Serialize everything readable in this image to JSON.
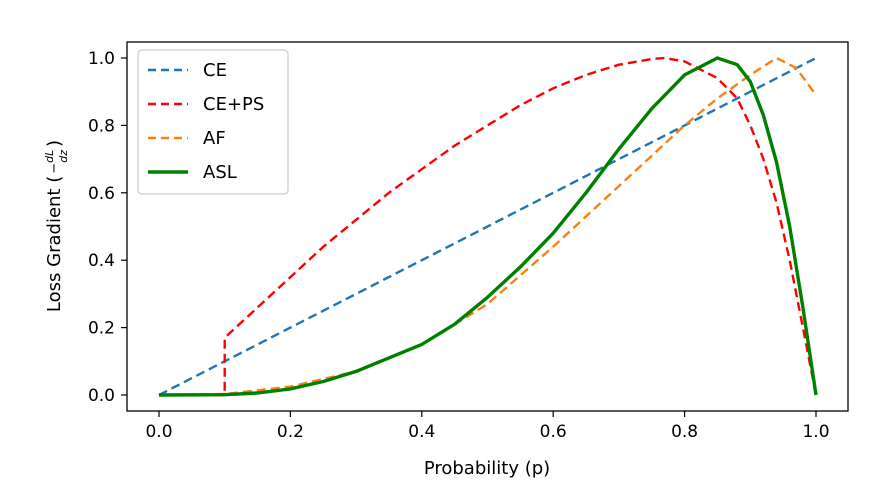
{
  "chart_data": {
    "type": "line",
    "title": "",
    "xlabel": "Probability (p)",
    "ylabel_prefix": "Loss Gradient (",
    "ylabel_frac_sign": "−",
    "ylabel_frac_num": "dL",
    "ylabel_frac_den": "dz",
    "ylabel_suffix": ")",
    "xlim": [
      0.0,
      1.0
    ],
    "ylim": [
      0.0,
      1.0
    ],
    "x_ticks": [
      "0.0",
      "0.2",
      "0.4",
      "0.6",
      "0.8",
      "1.0"
    ],
    "y_ticks": [
      "0.0",
      "0.2",
      "0.4",
      "0.6",
      "0.8",
      "1.0"
    ],
    "legend_position": "top-left",
    "grid": false,
    "series": [
      {
        "name": "CE",
        "color": "#1f77b4",
        "style": "dashed",
        "x": [
          0.0,
          1.0
        ],
        "y": [
          0.0,
          1.0
        ]
      },
      {
        "name": "CE+PS",
        "color": "#ff0000",
        "style": "dashed",
        "x": [
          0.0,
          0.1,
          0.1,
          0.15,
          0.2,
          0.25,
          0.3,
          0.35,
          0.4,
          0.45,
          0.5,
          0.55,
          0.6,
          0.65,
          0.7,
          0.75,
          0.77,
          0.8,
          0.85,
          0.88,
          0.9,
          0.92,
          0.94,
          0.96,
          0.98,
          1.0
        ],
        "y": [
          0.0,
          0.0,
          0.17,
          0.26,
          0.35,
          0.44,
          0.52,
          0.6,
          0.67,
          0.74,
          0.8,
          0.86,
          0.91,
          0.95,
          0.98,
          0.997,
          1.0,
          0.99,
          0.94,
          0.88,
          0.8,
          0.7,
          0.57,
          0.4,
          0.2,
          0.0
        ]
      },
      {
        "name": "AF",
        "color": "#ff7f0e",
        "style": "dashed",
        "x": [
          0.0,
          0.1,
          0.2,
          0.3,
          0.4,
          0.5,
          0.6,
          0.7,
          0.75,
          0.8,
          0.85,
          0.9,
          0.94,
          0.97,
          1.0
        ],
        "y": [
          0.0,
          0.003,
          0.025,
          0.07,
          0.15,
          0.27,
          0.44,
          0.62,
          0.71,
          0.8,
          0.88,
          0.95,
          1.0,
          0.97,
          0.89
        ]
      },
      {
        "name": "ASL",
        "color": "#008000",
        "style": "solid",
        "x": [
          0.0,
          0.1,
          0.15,
          0.2,
          0.25,
          0.3,
          0.35,
          0.4,
          0.45,
          0.5,
          0.55,
          0.6,
          0.65,
          0.7,
          0.75,
          0.8,
          0.85,
          0.88,
          0.9,
          0.92,
          0.94,
          0.96,
          0.98,
          1.0
        ],
        "y": [
          0.0,
          0.001,
          0.006,
          0.018,
          0.04,
          0.07,
          0.11,
          0.15,
          0.21,
          0.29,
          0.38,
          0.48,
          0.6,
          0.73,
          0.85,
          0.95,
          1.0,
          0.98,
          0.93,
          0.83,
          0.69,
          0.5,
          0.26,
          0.0
        ]
      }
    ]
  }
}
